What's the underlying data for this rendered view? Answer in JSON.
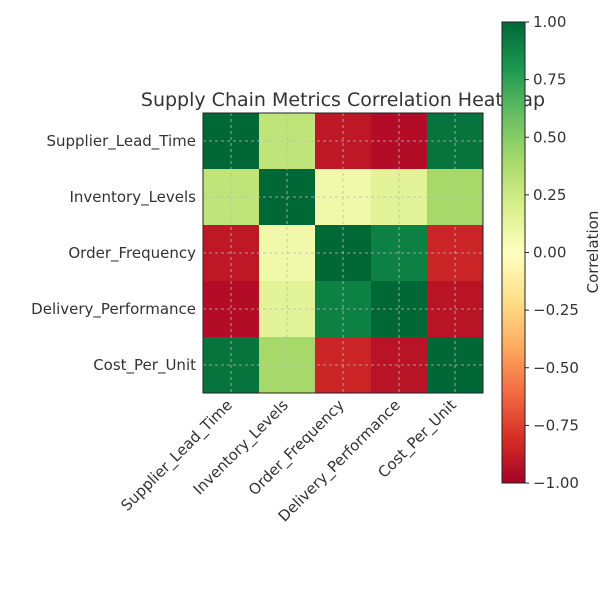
{
  "chart_data": {
    "type": "heatmap",
    "title": "Supply Chain Metrics Correlation Heatmap",
    "x_categories": [
      "Supplier_Lead_Time",
      "Inventory_Levels",
      "Order_Frequency",
      "Delivery_Performance",
      "Cost_Per_Unit"
    ],
    "y_categories": [
      "Supplier_Lead_Time",
      "Inventory_Levels",
      "Order_Frequency",
      "Delivery_Performance",
      "Cost_Per_Unit"
    ],
    "matrix": [
      [
        1.0,
        0.3,
        -0.9,
        -0.95,
        0.95
      ],
      [
        0.3,
        1.0,
        0.08,
        0.15,
        0.4
      ],
      [
        -0.9,
        0.08,
        1.0,
        0.9,
        -0.85
      ],
      [
        -0.95,
        0.15,
        0.9,
        1.0,
        -0.92
      ],
      [
        0.95,
        0.4,
        -0.85,
        -0.92,
        1.0
      ]
    ],
    "colormap": "RdYlGn",
    "vmin": -1.0,
    "vmax": 1.0,
    "colorbar": {
      "label": "Correlation",
      "ticks": [
        1.0,
        0.75,
        0.5,
        0.25,
        0.0,
        -0.25,
        -0.5,
        -0.75,
        -1.0
      ],
      "tick_labels": [
        "1.00",
        "0.75",
        "0.50",
        "0.25",
        "0.00",
        "−0.25",
        "−0.50",
        "−0.75",
        "−1.00"
      ]
    },
    "grid": true
  }
}
